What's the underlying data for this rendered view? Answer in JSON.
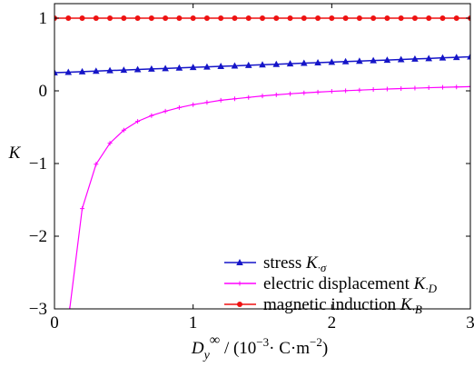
{
  "chart_data": {
    "type": "line",
    "xlim": [
      0,
      3
    ],
    "ylim": [
      -3,
      1.2
    ],
    "x_ticks": [
      0,
      1,
      2,
      3
    ],
    "x_tick_labels": [
      "0",
      "1",
      "2",
      "3"
    ],
    "y_ticks": [
      -3,
      -2,
      -1,
      0,
      1
    ],
    "y_tick_labels": [
      "−3",
      "−2",
      "−1",
      "0",
      "1"
    ],
    "ylabel": "K",
    "xlabel": {
      "base": "D",
      "subscript": "y",
      "superscript": "∞",
      "rest_prefix": " / (10",
      "exponent1": "−3",
      "rest_mid": "· C·m",
      "exponent2": "−2",
      "rest_suffix": ")"
    },
    "grid": false,
    "legend_position": "bottom-right",
    "series": [
      {
        "name": "stress K·σ",
        "legend": {
          "text": "stress ",
          "sym": "K",
          "sub": "·σ"
        },
        "color": "#1515c8",
        "marker": "triangle",
        "x": [
          0,
          0.1,
          0.2,
          0.3,
          0.4,
          0.5,
          0.6,
          0.7,
          0.8,
          0.9,
          1.0,
          1.1,
          1.2,
          1.3,
          1.4,
          1.5,
          1.6,
          1.7,
          1.8,
          1.9,
          2.0,
          2.1,
          2.2,
          2.3,
          2.4,
          2.5,
          2.6,
          2.7,
          2.8,
          2.9,
          3.0
        ],
        "y": [
          0.25,
          0.257,
          0.264,
          0.272,
          0.279,
          0.286,
          0.294,
          0.301,
          0.308,
          0.315,
          0.323,
          0.33,
          0.337,
          0.344,
          0.352,
          0.359,
          0.366,
          0.374,
          0.381,
          0.388,
          0.395,
          0.403,
          0.41,
          0.417,
          0.424,
          0.432,
          0.439,
          0.446,
          0.454,
          0.461,
          0.468
        ]
      },
      {
        "name": "electric displacement K·D",
        "legend": {
          "text": "electric displacement ",
          "sym": "K",
          "sub": "·D"
        },
        "color": "#ff00ff",
        "marker": "plus",
        "x": [
          0.11,
          0.2,
          0.3,
          0.4,
          0.5,
          0.6,
          0.7,
          0.8,
          0.9,
          1.0,
          1.1,
          1.2,
          1.3,
          1.4,
          1.5,
          1.6,
          1.7,
          1.8,
          1.9,
          2.0,
          2.1,
          2.2,
          2.3,
          2.4,
          2.5,
          2.6,
          2.7,
          2.8,
          2.9,
          3.0
        ],
        "y": [
          -3.0,
          -1.62,
          -1.01,
          -0.72,
          -0.54,
          -0.42,
          -0.34,
          -0.28,
          -0.23,
          -0.19,
          -0.16,
          -0.13,
          -0.11,
          -0.09,
          -0.07,
          -0.055,
          -0.04,
          -0.028,
          -0.017,
          -0.007,
          0.002,
          0.01,
          0.018,
          0.025,
          0.031,
          0.037,
          0.043,
          0.048,
          0.053,
          0.058
        ]
      },
      {
        "name": "magnetic induction K·B",
        "legend": {
          "text": "magnetic induction ",
          "sym": "K",
          "sub": "·B"
        },
        "color": "#ee1111",
        "marker": "circle",
        "x": [
          0,
          0.1,
          0.2,
          0.3,
          0.4,
          0.5,
          0.6,
          0.7,
          0.8,
          0.9,
          1.0,
          1.1,
          1.2,
          1.3,
          1.4,
          1.5,
          1.6,
          1.7,
          1.8,
          1.9,
          2.0,
          2.1,
          2.2,
          2.3,
          2.4,
          2.5,
          2.6,
          2.7,
          2.8,
          2.9,
          3.0
        ],
        "y": [
          1,
          1,
          1,
          1,
          1,
          1,
          1,
          1,
          1,
          1,
          1,
          1,
          1,
          1,
          1,
          1,
          1,
          1,
          1,
          1,
          1,
          1,
          1,
          1,
          1,
          1,
          1,
          1,
          1,
          1,
          1
        ]
      }
    ]
  }
}
